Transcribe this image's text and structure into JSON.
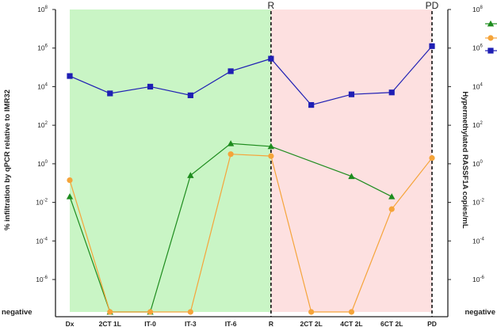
{
  "chart_data": {
    "type": "line",
    "categories": [
      "Dx",
      "2CT 1L",
      "IT-0",
      "IT-3",
      "IT-6",
      "R",
      "2CT 2L",
      "4CT 2L",
      "6CT 2L",
      "PD"
    ],
    "y_left": {
      "title": "% infiltration by qPCR relative to IMR32",
      "scale": "log10",
      "ticks": [
        {
          "base": "10",
          "exp": "8",
          "value": 8
        },
        {
          "base": "10",
          "exp": "6",
          "value": 6
        },
        {
          "base": "10",
          "exp": "4",
          "value": 4
        },
        {
          "base": "10",
          "exp": "2",
          "value": 2
        },
        {
          "base": "10",
          "exp": "0",
          "value": 0
        },
        {
          "base": "10",
          "exp": "-2",
          "value": -2
        },
        {
          "base": "10",
          "exp": "-4",
          "value": -4
        },
        {
          "base": "10",
          "exp": "-6",
          "value": -6
        }
      ],
      "negative_label": "negative"
    },
    "y_right": {
      "title": "Hypermethylated RASSF1A copies/mL",
      "scale": "log10",
      "ticks": [
        {
          "base": "10",
          "exp": "8",
          "value": 8
        },
        {
          "base": "10",
          "exp": "6",
          "value": 6
        },
        {
          "base": "10",
          "exp": "4",
          "value": 4
        },
        {
          "base": "10",
          "exp": "2",
          "value": 2
        },
        {
          "base": "10",
          "exp": "0",
          "value": 0
        },
        {
          "base": "10",
          "exp": "-2",
          "value": -2
        },
        {
          "base": "10",
          "exp": "-4",
          "value": -4
        },
        {
          "base": "10",
          "exp": "-6",
          "value": -6
        }
      ],
      "negative_label": "negative"
    },
    "ylim_log10": [
      -7.6,
      8
    ],
    "series": [
      {
        "key": "green",
        "marker": "triangle",
        "color": "#1e8c1e",
        "log10_values": [
          -1.7,
          "negative",
          "negative",
          -0.6,
          1.05,
          0.9,
          null,
          -0.65,
          -1.7,
          null
        ],
        "line_points": [
          0,
          1,
          2,
          3,
          4,
          5,
          7,
          8
        ]
      },
      {
        "key": "orange",
        "marker": "circle",
        "color": "#f5a43a",
        "log10_values": [
          -0.85,
          "negative",
          "negative",
          "negative",
          0.5,
          0.4,
          "negative",
          "negative",
          -2.35,
          0.3
        ],
        "line_points": [
          0,
          1,
          2,
          3,
          4,
          5,
          6,
          7,
          8,
          9
        ]
      },
      {
        "key": "blue",
        "marker": "square",
        "color": "#1f1fb4",
        "log10_values": [
          4.55,
          3.65,
          4.0,
          3.55,
          4.8,
          5.45,
          3.05,
          3.6,
          3.7,
          6.1
        ],
        "line_points": [
          0,
          1,
          2,
          3,
          4,
          5,
          6,
          7,
          8,
          9
        ]
      }
    ],
    "regions": [
      {
        "from_category": 0,
        "to_category": 5,
        "color": "#c9f5c5"
      },
      {
        "from_category": 5,
        "to_category": 9,
        "color": "#fde0e0"
      }
    ],
    "vertical_markers": [
      {
        "category": 5,
        "label": "R"
      },
      {
        "category": 9,
        "label": "PD"
      }
    ],
    "legend": {
      "placement": "top-right",
      "labels_visible": false
    }
  }
}
